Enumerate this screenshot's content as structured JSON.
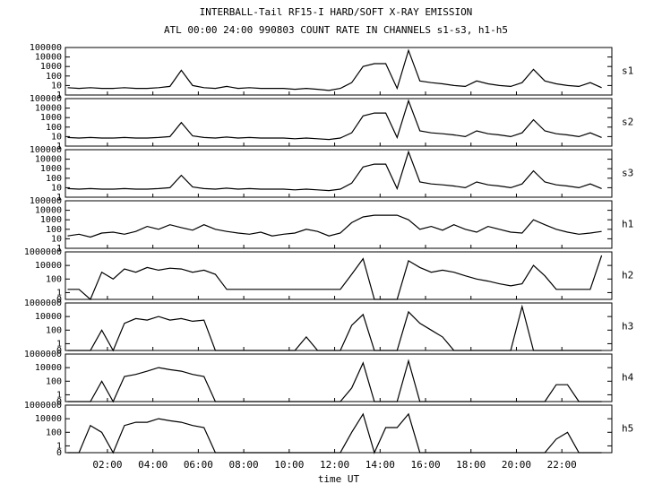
{
  "chart_data": {
    "type": "line",
    "title": "INTERBALL-Tail RF15-I HARD/SOFT X-RAY EMISSION",
    "subtitle": "ATL 00:00 24:00 990803  COUNT RATE IN CHANNELS s1-s3, h1-h5",
    "xlabel": "time UT",
    "log": true,
    "xlim": [
      0.15,
      24.2
    ],
    "xticks": [
      {
        "value": 2,
        "label": "02:00"
      },
      {
        "value": 4,
        "label": "04:00"
      },
      {
        "value": 6,
        "label": "06:00"
      },
      {
        "value": 8,
        "label": "08:00"
      },
      {
        "value": 10,
        "label": "10:00"
      },
      {
        "value": 12,
        "label": "12:00"
      },
      {
        "value": 14,
        "label": "14:00"
      },
      {
        "value": 16,
        "label": "16:00"
      },
      {
        "value": 18,
        "label": "18:00"
      },
      {
        "value": 20,
        "label": "20:00"
      },
      {
        "value": 22,
        "label": "22:00"
      }
    ],
    "x": [
      0.25,
      0.75,
      1.25,
      1.75,
      2.25,
      2.75,
      3.25,
      3.75,
      4.25,
      4.75,
      5.25,
      5.75,
      6.25,
      6.75,
      7.25,
      7.75,
      8.25,
      8.75,
      9.25,
      9.75,
      10.25,
      10.75,
      11.25,
      11.75,
      12.25,
      12.75,
      13.25,
      13.75,
      14.25,
      14.75,
      15.25,
      15.75,
      16.25,
      16.75,
      17.25,
      17.75,
      18.25,
      18.75,
      19.25,
      19.75,
      20.25,
      20.75,
      21.25,
      21.75,
      22.25,
      22.75,
      23.25,
      23.75
    ],
    "series": [
      {
        "name": "s1",
        "color": "#000000",
        "ylim": [
          1,
          100000
        ],
        "yticks": [
          1,
          10,
          100,
          1000,
          10000,
          100000
        ],
        "values": [
          6,
          5,
          6,
          5,
          5,
          6,
          5,
          5,
          6,
          8,
          400,
          10,
          6,
          5,
          8,
          5,
          6,
          5,
          5,
          5,
          4,
          5,
          4,
          3,
          5,
          20,
          1000,
          2000,
          2000,
          5,
          50000,
          30,
          20,
          15,
          10,
          8,
          30,
          15,
          10,
          8,
          20,
          500,
          30,
          15,
          10,
          8,
          20,
          6
        ]
      },
      {
        "name": "s2",
        "color": "#000000",
        "ylim": [
          1,
          100000
        ],
        "yticks": [
          1,
          10,
          100,
          1000,
          10000,
          100000
        ],
        "values": [
          8,
          7,
          8,
          7,
          7,
          8,
          7,
          7,
          8,
          10,
          300,
          12,
          8,
          7,
          9,
          7,
          8,
          7,
          7,
          7,
          6,
          7,
          6,
          5,
          7,
          25,
          1500,
          3000,
          3000,
          8,
          60000,
          40,
          25,
          20,
          15,
          10,
          40,
          20,
          15,
          10,
          25,
          600,
          40,
          20,
          15,
          10,
          25,
          8
        ]
      },
      {
        "name": "s3",
        "color": "#000000",
        "ylim": [
          1,
          100000
        ],
        "yticks": [
          1,
          10,
          100,
          1000,
          10000,
          100000
        ],
        "values": [
          8,
          7,
          8,
          7,
          7,
          8,
          7,
          7,
          8,
          10,
          200,
          12,
          8,
          7,
          9,
          7,
          8,
          7,
          7,
          7,
          6,
          7,
          6,
          5,
          7,
          30,
          1500,
          3000,
          3000,
          8,
          60000,
          40,
          25,
          20,
          15,
          10,
          40,
          20,
          15,
          10,
          25,
          600,
          40,
          20,
          15,
          10,
          25,
          8
        ]
      },
      {
        "name": "h1",
        "color": "#000000",
        "ylim": [
          1,
          100000
        ],
        "yticks": [
          1,
          10,
          100,
          1000,
          10000,
          100000
        ],
        "values": [
          20,
          30,
          15,
          40,
          50,
          30,
          60,
          200,
          100,
          300,
          150,
          80,
          300,
          100,
          60,
          40,
          30,
          50,
          20,
          30,
          40,
          100,
          60,
          20,
          40,
          500,
          2000,
          3000,
          3000,
          3000,
          1000,
          100,
          200,
          80,
          300,
          100,
          50,
          200,
          100,
          50,
          40,
          1000,
          300,
          100,
          50,
          30,
          40,
          60
        ]
      },
      {
        "name": "h2",
        "color": "#000000",
        "ylim": [
          0,
          1000000
        ],
        "yticks": [
          0,
          1,
          100,
          10000,
          1000000
        ],
        "values": [
          3,
          3,
          0,
          1000,
          100,
          3000,
          1000,
          5000,
          2000,
          4000,
          3000,
          1000,
          2000,
          500,
          3,
          3,
          3,
          3,
          3,
          3,
          3,
          3,
          3,
          3,
          3,
          500,
          100000,
          0,
          0,
          0,
          50000,
          5000,
          1000,
          2000,
          1000,
          300,
          100,
          50,
          20,
          10,
          20,
          10000,
          300,
          3,
          3,
          3,
          3,
          300000
        ]
      },
      {
        "name": "h3",
        "color": "#000000",
        "ylim": [
          0,
          1000000
        ],
        "yticks": [
          0,
          1,
          100,
          10000,
          1000000
        ],
        "values": [
          0,
          0,
          0,
          100,
          0,
          1000,
          5000,
          3000,
          10000,
          3000,
          5000,
          2000,
          3000,
          0,
          0,
          0,
          0,
          0,
          0,
          0,
          0,
          10,
          0,
          0,
          0,
          500,
          20000,
          0,
          0,
          0,
          50000,
          1000,
          100,
          10,
          0,
          0,
          0,
          0,
          0,
          0,
          300000,
          0,
          0,
          0,
          0,
          0,
          0,
          0
        ]
      },
      {
        "name": "h4",
        "color": "#000000",
        "ylim": [
          0,
          1000000
        ],
        "yticks": [
          0,
          1,
          100,
          10000,
          1000000
        ],
        "values": [
          0,
          0,
          0,
          100,
          0,
          500,
          1000,
          3000,
          10000,
          5000,
          3000,
          1000,
          500,
          0,
          0,
          0,
          0,
          0,
          0,
          0,
          0,
          0,
          0,
          0,
          0,
          10,
          50000,
          0,
          0,
          0,
          100000,
          0,
          0,
          0,
          0,
          0,
          0,
          0,
          0,
          0,
          0,
          0,
          0,
          30,
          30,
          0,
          0,
          0
        ]
      },
      {
        "name": "h5",
        "color": "#000000",
        "ylim": [
          0,
          1000000
        ],
        "yticks": [
          0,
          1,
          100,
          10000,
          1000000
        ],
        "values": [
          0,
          0,
          1000,
          100,
          0,
          1000,
          3000,
          3000,
          10000,
          5000,
          3000,
          1000,
          500,
          0,
          0,
          0,
          0,
          0,
          0,
          0,
          0,
          0,
          0,
          0,
          0,
          100,
          50000,
          0,
          500,
          500,
          50000,
          0,
          0,
          0,
          0,
          0,
          0,
          0,
          0,
          0,
          0,
          0,
          0,
          10,
          100,
          0,
          0,
          0
        ]
      }
    ]
  }
}
